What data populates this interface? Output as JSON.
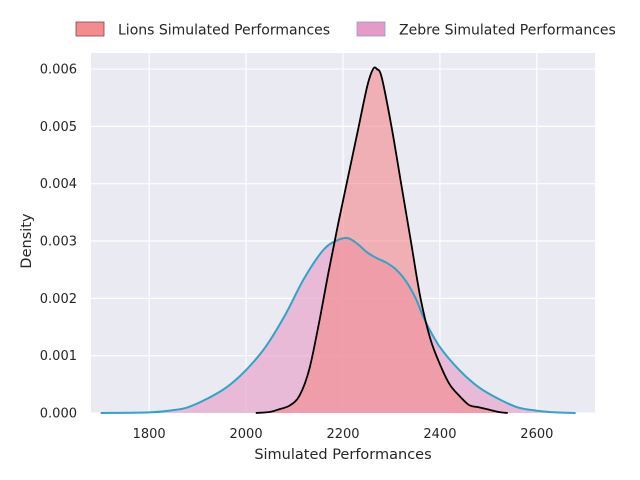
{
  "chart_data": {
    "type": "area",
    "title": "",
    "xlabel": "Simulated Performances",
    "ylabel": "Density",
    "xlim": [
      1680,
      2720
    ],
    "ylim": [
      0,
      0.00628
    ],
    "x_ticks": [
      1800,
      2000,
      2200,
      2400,
      2600
    ],
    "y_ticks": [
      0.0,
      0.001,
      0.002,
      0.003,
      0.004,
      0.005,
      0.006
    ],
    "x_tick_labels": [
      "1800",
      "2000",
      "2200",
      "2400",
      "2600"
    ],
    "y_tick_labels": [
      "0.000",
      "0.001",
      "0.002",
      "0.003",
      "0.004",
      "0.005",
      "0.006"
    ],
    "grid": true,
    "legend_position": "top-center, outside plot, 2 columns",
    "series": [
      {
        "name": "Lions Simulated Performances",
        "fill_color": "#f48b8e",
        "line_color": "#000000",
        "points": [
          [
            2020,
            0.0
          ],
          [
            2050,
            2e-05
          ],
          [
            2070,
            7e-05
          ],
          [
            2090,
            0.00013
          ],
          [
            2110,
            0.0003
          ],
          [
            2130,
            0.00075
          ],
          [
            2150,
            0.00155
          ],
          [
            2170,
            0.00245
          ],
          [
            2190,
            0.0033
          ],
          [
            2210,
            0.0041
          ],
          [
            2230,
            0.0049
          ],
          [
            2250,
            0.0057
          ],
          [
            2262,
            0.006
          ],
          [
            2270,
            0.006
          ],
          [
            2280,
            0.00585
          ],
          [
            2300,
            0.005
          ],
          [
            2320,
            0.004
          ],
          [
            2340,
            0.003
          ],
          [
            2360,
            0.002
          ],
          [
            2380,
            0.0013
          ],
          [
            2400,
            0.00085
          ],
          [
            2420,
            0.0005
          ],
          [
            2440,
            0.0003
          ],
          [
            2460,
            0.00014
          ],
          [
            2480,
            0.0001
          ],
          [
            2500,
            6e-05
          ],
          [
            2520,
            2e-05
          ],
          [
            2540,
            0.0
          ]
        ]
      },
      {
        "name": "Zebre Simulated Performances",
        "fill_color": "#e8a9cd",
        "line_color": "#2fa4c8",
        "points": [
          [
            1700,
            0.0
          ],
          [
            1800,
            1e-05
          ],
          [
            1850,
            5e-05
          ],
          [
            1880,
            0.0001
          ],
          [
            1920,
            0.00025
          ],
          [
            1960,
            0.00045
          ],
          [
            2000,
            0.00075
          ],
          [
            2040,
            0.00115
          ],
          [
            2080,
            0.0017
          ],
          [
            2120,
            0.00235
          ],
          [
            2160,
            0.00285
          ],
          [
            2190,
            0.00302
          ],
          [
            2210,
            0.00305
          ],
          [
            2230,
            0.00295
          ],
          [
            2250,
            0.0028
          ],
          [
            2270,
            0.0027
          ],
          [
            2290,
            0.00262
          ],
          [
            2310,
            0.0025
          ],
          [
            2330,
            0.0023
          ],
          [
            2350,
            0.002
          ],
          [
            2370,
            0.0016
          ],
          [
            2400,
            0.00115
          ],
          [
            2440,
            0.00075
          ],
          [
            2480,
            0.00045
          ],
          [
            2520,
            0.00025
          ],
          [
            2560,
            0.0001
          ],
          [
            2600,
            4e-05
          ],
          [
            2640,
            1e-05
          ],
          [
            2680,
            0.0
          ]
        ]
      }
    ]
  },
  "colors": {
    "plot_background": "#eaeaf2",
    "grid": "#ffffff",
    "text": "#262626",
    "overlap_tint": "#f28a98"
  }
}
